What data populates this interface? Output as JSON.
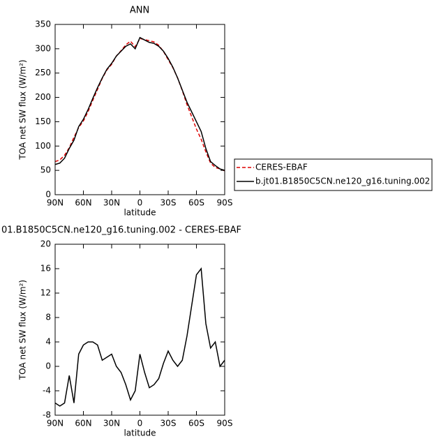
{
  "chart_data": [
    {
      "type": "line",
      "title": "ANN",
      "x_label": "latitude",
      "y_label": "TOA net SW flux (W/m²)",
      "x": [
        90,
        85,
        80,
        75,
        70,
        65,
        60,
        55,
        50,
        45,
        40,
        35,
        30,
        25,
        20,
        15,
        10,
        5,
        0,
        -5,
        -10,
        -15,
        -20,
        -25,
        -30,
        -35,
        -40,
        -45,
        -50,
        -55,
        -60,
        -65,
        -70,
        -75,
        -80,
        -85,
        -90
      ],
      "series": [
        {
          "name": "CERES-EBAF",
          "color": "#dd0000",
          "style": "dashed",
          "values": [
            68,
            71.5,
            81,
            96.5,
            118,
            138,
            151.5,
            171,
            194,
            216.5,
            239,
            256.5,
            268,
            285,
            296,
            308,
            315.5,
            304,
            321,
            319,
            316.5,
            314,
            307,
            294.5,
            277.5,
            261,
            240,
            214,
            185,
            160,
            135,
            114,
            88,
            65,
            56,
            53,
            49
          ]
        },
        {
          "name": "b.jt01.B1850C5CN.ne120_g16.tuning.002",
          "color": "#000000",
          "style": "solid",
          "values": [
            62,
            65,
            75,
            95,
            112,
            140,
            155,
            175,
            198,
            220,
            240,
            258,
            270,
            285,
            295,
            305,
            310,
            300,
            323,
            318,
            313,
            311,
            305,
            295,
            280,
            262,
            240,
            215,
            190,
            170,
            150,
            130,
            95,
            68,
            60,
            53,
            50
          ]
        }
      ],
      "xlim": [
        90,
        -90
      ],
      "xticks": [
        {
          "value": 90,
          "label": "90N"
        },
        {
          "value": 60,
          "label": "60N"
        },
        {
          "value": 30,
          "label": "30N"
        },
        0,
        {
          "value": -30,
          "label": "30S"
        },
        {
          "value": -60,
          "label": "60S"
        },
        {
          "value": -90,
          "label": "90S"
        }
      ],
      "ylim": [
        0,
        350
      ],
      "yticks": [
        0,
        50,
        100,
        150,
        200,
        250,
        300,
        350
      ],
      "legend": "right"
    },
    {
      "type": "line",
      "title": "01.B1850C5CN.ne120_g16.tuning.002 - CERES-EBAF",
      "x_label": "latitude",
      "y_label": "TOA net SW flux (W/m²)",
      "x": [
        90,
        85,
        80,
        75,
        70,
        65,
        60,
        55,
        50,
        45,
        40,
        35,
        30,
        25,
        20,
        15,
        10,
        5,
        0,
        -5,
        -10,
        -15,
        -20,
        -25,
        -30,
        -35,
        -40,
        -45,
        -50,
        -55,
        -60,
        -65,
        -70,
        -75,
        -80,
        -85,
        -90
      ],
      "series": [
        {
          "color": "#000000",
          "style": "solid",
          "values": [
            -6,
            -6.5,
            -6,
            -1.5,
            -6,
            2,
            3.5,
            4,
            4,
            3.5,
            1,
            1.5,
            2,
            0,
            -1,
            -3,
            -5.5,
            -4,
            2,
            -1,
            -3.5,
            -3,
            -2,
            0.5,
            2.5,
            1,
            0,
            1,
            5,
            10,
            15,
            16,
            7,
            3,
            4,
            0,
            1
          ]
        }
      ],
      "xlim": [
        90,
        -90
      ],
      "xticks": [
        {
          "value": 90,
          "label": "90N"
        },
        {
          "value": 60,
          "label": "60N"
        },
        {
          "value": 30,
          "label": "30N"
        },
        0,
        {
          "value": -30,
          "label": "30S"
        },
        {
          "value": -60,
          "label": "60S"
        },
        {
          "value": -90,
          "label": "90S"
        }
      ],
      "ylim": [
        -8,
        20
      ],
      "yticks": [
        -8,
        -4,
        0,
        4,
        8,
        12,
        16,
        20
      ]
    }
  ]
}
